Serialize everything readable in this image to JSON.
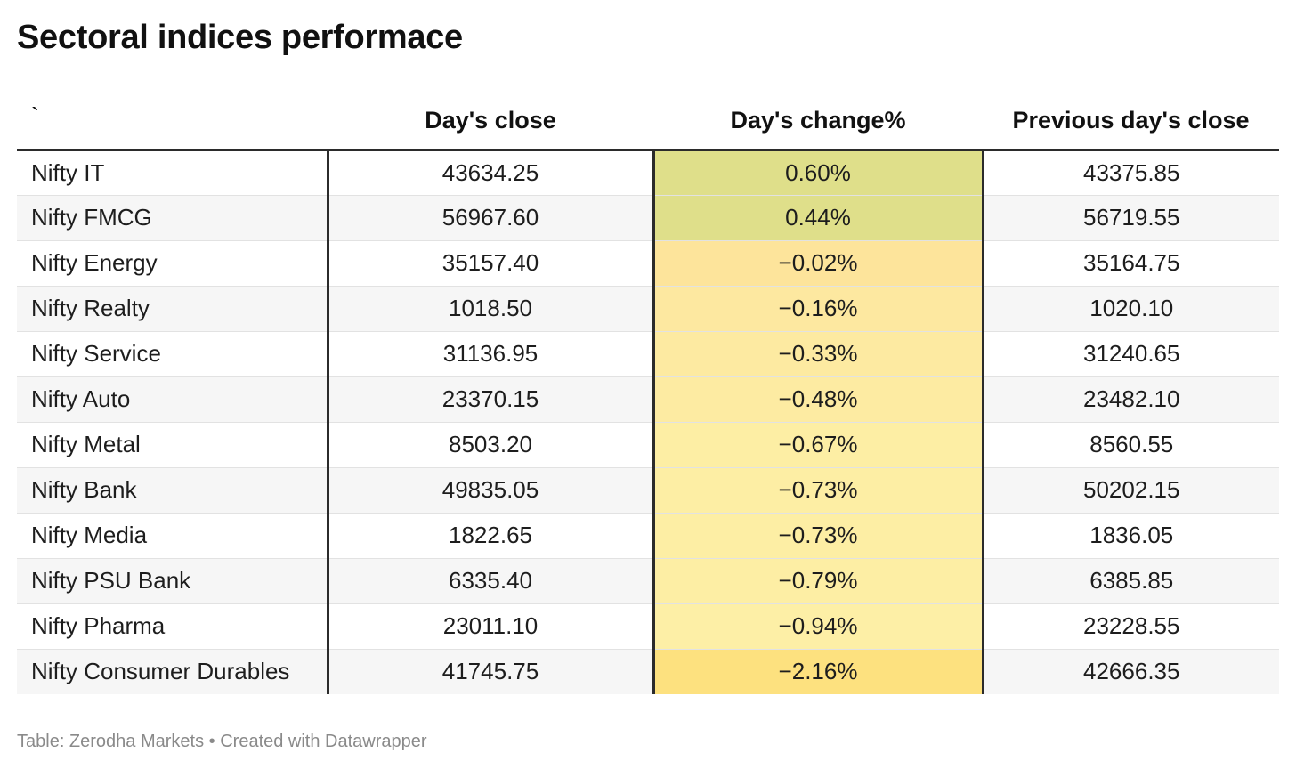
{
  "title": "Sectoral indices performace",
  "footer": "Table: Zerodha Markets • Created with Datawrapper",
  "colors": {
    "positive": "#dfdf8a",
    "neutral": "#fde49b",
    "negative_light": "#fdeea4",
    "negative_strong": "#fde17f"
  },
  "chart_data": {
    "type": "table",
    "title": "Sectoral indices performace",
    "columns": [
      "`",
      "Day's close",
      "Day's change%",
      "Previous day's close"
    ],
    "rows": [
      {
        "name": "Nifty IT",
        "close": "43634.25",
        "change": "0.60%",
        "change_value": 0.6,
        "prev": "43375.85",
        "color": "#dfdf8a"
      },
      {
        "name": "Nifty FMCG",
        "close": "56967.60",
        "change": "0.44%",
        "change_value": 0.44,
        "prev": "56719.55",
        "color": "#dfdf8a"
      },
      {
        "name": "Nifty Energy",
        "close": "35157.40",
        "change": "−0.02%",
        "change_value": -0.02,
        "prev": "35164.75",
        "color": "#fde49b"
      },
      {
        "name": "Nifty Realty",
        "close": "1018.50",
        "change": "−0.16%",
        "change_value": -0.16,
        "prev": "1020.10",
        "color": "#fde8a0"
      },
      {
        "name": "Nifty Service",
        "close": "31136.95",
        "change": "−0.33%",
        "change_value": -0.33,
        "prev": "31240.65",
        "color": "#fdeaa1"
      },
      {
        "name": "Nifty Auto",
        "close": "23370.15",
        "change": "−0.48%",
        "change_value": -0.48,
        "prev": "23482.10",
        "color": "#fdeba2"
      },
      {
        "name": "Nifty Metal",
        "close": "8503.20",
        "change": "−0.67%",
        "change_value": -0.67,
        "prev": "8560.55",
        "color": "#fdeea4"
      },
      {
        "name": "Nifty Bank",
        "close": "49835.05",
        "change": "−0.73%",
        "change_value": -0.73,
        "prev": "50202.15",
        "color": "#fdeea4"
      },
      {
        "name": "Nifty Media",
        "close": "1822.65",
        "change": "−0.73%",
        "change_value": -0.73,
        "prev": "1836.05",
        "color": "#fdeea4"
      },
      {
        "name": "Nifty PSU Bank",
        "close": "6335.40",
        "change": "−0.79%",
        "change_value": -0.79,
        "prev": "6385.85",
        "color": "#fdeea4"
      },
      {
        "name": "Nifty Pharma",
        "close": "23011.10",
        "change": "−0.94%",
        "change_value": -0.94,
        "prev": "23228.55",
        "color": "#fdefa6"
      },
      {
        "name": "Nifty Consumer Durables",
        "close": "41745.75",
        "change": "−2.16%",
        "change_value": -2.16,
        "prev": "42666.35",
        "color": "#fde17f"
      }
    ]
  }
}
